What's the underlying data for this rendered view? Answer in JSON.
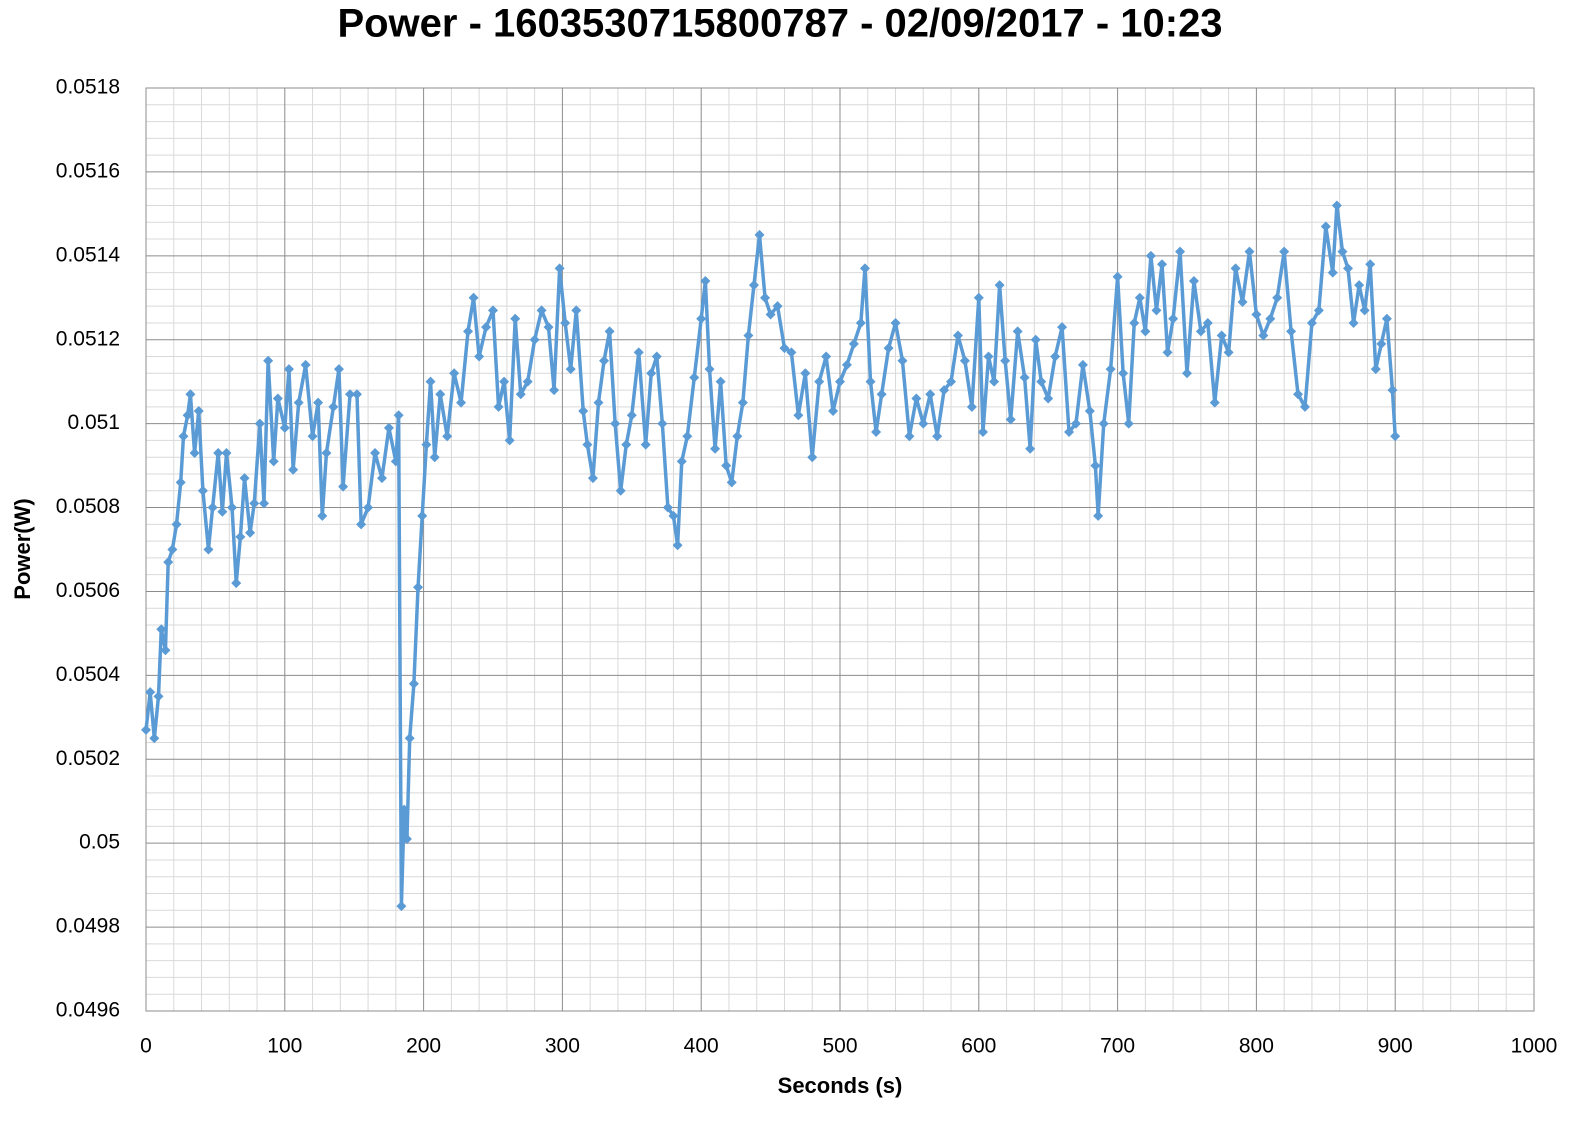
{
  "chart_data": {
    "type": "line",
    "title": "Power - 1603530715800787 - 02/09/2017 - 10:23",
    "x_label": "Seconds (s)",
    "y_label": "Power(W)",
    "x": [
      0,
      3,
      6,
      9,
      11,
      14,
      16,
      19,
      22,
      25,
      27,
      30,
      32,
      35,
      38,
      41,
      45,
      48,
      52,
      55,
      58,
      62,
      65,
      68,
      71,
      75,
      78,
      82,
      85,
      88,
      92,
      95,
      100,
      103,
      106,
      110,
      115,
      120,
      124,
      127,
      130,
      135,
      139,
      142,
      147,
      152,
      155,
      160,
      165,
      170,
      175,
      180,
      182,
      184,
      186,
      188,
      190,
      193,
      196,
      199,
      202,
      205,
      208,
      212,
      217,
      222,
      227,
      232,
      236,
      240,
      245,
      250,
      254,
      258,
      262,
      266,
      270,
      275,
      280,
      285,
      290,
      294,
      298,
      302,
      306,
      310,
      315,
      318,
      322,
      326,
      330,
      334,
      338,
      342,
      346,
      350,
      355,
      360,
      364,
      368,
      372,
      376,
      380,
      383,
      386,
      390,
      395,
      400,
      403,
      406,
      410,
      414,
      418,
      422,
      426,
      430,
      434,
      438,
      442,
      446,
      450,
      455,
      460,
      465,
      470,
      475,
      480,
      485,
      490,
      495,
      500,
      505,
      510,
      515,
      518,
      522,
      526,
      530,
      535,
      540,
      545,
      550,
      555,
      560,
      565,
      570,
      575,
      580,
      585,
      590,
      595,
      600,
      603,
      607,
      611,
      615,
      619,
      623,
      628,
      633,
      637,
      641,
      645,
      650,
      655,
      660,
      665,
      670,
      675,
      680,
      684,
      686,
      690,
      695,
      700,
      704,
      708,
      712,
      716,
      720,
      724,
      728,
      732,
      736,
      740,
      745,
      750,
      755,
      760,
      765,
      770,
      775,
      780,
      785,
      790,
      795,
      800,
      805,
      810,
      815,
      820,
      825,
      830,
      835,
      840,
      845,
      850,
      855,
      858,
      862,
      866,
      870,
      874,
      878,
      882,
      886,
      890,
      894,
      898,
      900
    ],
    "series": [
      {
        "name": "Power",
        "color": "#5b9bd5",
        "values": [
          0.05027,
          0.05036,
          0.05025,
          0.05035,
          0.05051,
          0.05046,
          0.05067,
          0.0507,
          0.05076,
          0.05086,
          0.05097,
          0.05102,
          0.05107,
          0.05093,
          0.05103,
          0.05084,
          0.0507,
          0.0508,
          0.05093,
          0.05079,
          0.05093,
          0.0508,
          0.05062,
          0.05073,
          0.05087,
          0.05074,
          0.05081,
          0.051,
          0.05081,
          0.05115,
          0.05091,
          0.05106,
          0.05099,
          0.05113,
          0.05089,
          0.05105,
          0.05114,
          0.05097,
          0.05105,
          0.05078,
          0.05093,
          0.05104,
          0.05113,
          0.05085,
          0.05107,
          0.05107,
          0.05076,
          0.0508,
          0.05093,
          0.05087,
          0.05099,
          0.05091,
          0.05102,
          0.04985,
          0.05008,
          0.05001,
          0.05025,
          0.05038,
          0.05061,
          0.05078,
          0.05095,
          0.0511,
          0.05092,
          0.05107,
          0.05097,
          0.05112,
          0.05105,
          0.05122,
          0.0513,
          0.05116,
          0.05123,
          0.05127,
          0.05104,
          0.0511,
          0.05096,
          0.05125,
          0.05107,
          0.0511,
          0.0512,
          0.05127,
          0.05123,
          0.05108,
          0.05137,
          0.05124,
          0.05113,
          0.05127,
          0.05103,
          0.05095,
          0.05087,
          0.05105,
          0.05115,
          0.05122,
          0.051,
          0.05084,
          0.05095,
          0.05102,
          0.05117,
          0.05095,
          0.05112,
          0.05116,
          0.051,
          0.0508,
          0.05078,
          0.05071,
          0.05091,
          0.05097,
          0.05111,
          0.05125,
          0.05134,
          0.05113,
          0.05094,
          0.0511,
          0.0509,
          0.05086,
          0.05097,
          0.05105,
          0.05121,
          0.05133,
          0.05145,
          0.0513,
          0.05126,
          0.05128,
          0.05118,
          0.05117,
          0.05102,
          0.05112,
          0.05092,
          0.0511,
          0.05116,
          0.05103,
          0.0511,
          0.05114,
          0.05119,
          0.05124,
          0.05137,
          0.0511,
          0.05098,
          0.05107,
          0.05118,
          0.05124,
          0.05115,
          0.05097,
          0.05106,
          0.051,
          0.05107,
          0.05097,
          0.05108,
          0.0511,
          0.05121,
          0.05115,
          0.05104,
          0.0513,
          0.05098,
          0.05116,
          0.0511,
          0.05133,
          0.05115,
          0.05101,
          0.05122,
          0.05111,
          0.05094,
          0.0512,
          0.0511,
          0.05106,
          0.05116,
          0.05123,
          0.05098,
          0.051,
          0.05114,
          0.05103,
          0.0509,
          0.05078,
          0.051,
          0.05113,
          0.05135,
          0.05112,
          0.051,
          0.05124,
          0.0513,
          0.05122,
          0.0514,
          0.05127,
          0.05138,
          0.05117,
          0.05125,
          0.05141,
          0.05112,
          0.05134,
          0.05122,
          0.05124,
          0.05105,
          0.05121,
          0.05117,
          0.05137,
          0.05129,
          0.05141,
          0.05126,
          0.05121,
          0.05125,
          0.0513,
          0.05141,
          0.05122,
          0.05107,
          0.05104,
          0.05124,
          0.05127,
          0.05147,
          0.05136,
          0.05152,
          0.05141,
          0.05137,
          0.05124,
          0.05133,
          0.05127,
          0.05138,
          0.05113,
          0.05119,
          0.05125,
          0.05108,
          0.05097
        ]
      }
    ],
    "xlim": [
      0,
      1000
    ],
    "xticks": [
      0,
      100,
      200,
      300,
      400,
      500,
      600,
      700,
      800,
      900,
      1000
    ],
    "ylim": [
      0.0496,
      0.0518
    ],
    "yticks": [
      0.0496,
      0.0498,
      0.05,
      0.0502,
      0.0504,
      0.0506,
      0.0508,
      0.051,
      0.0512,
      0.0514,
      0.0516,
      0.0518
    ],
    "grid": true,
    "minor_grid": true,
    "markers": true
  }
}
